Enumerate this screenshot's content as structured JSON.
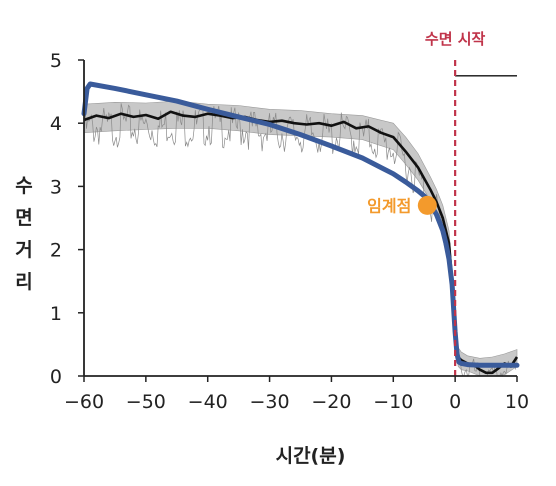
{
  "colors": {
    "model": "#3a5b9b",
    "data": "#111111",
    "band": "#c8c8c8",
    "sleep_onset": "#c0344a",
    "tipping_point": "#f39a2c",
    "axis": "#222222"
  },
  "chart_data": {
    "type": "line",
    "xlabel": "시간(분)",
    "ylabel": "수면거리",
    "ylabel_chars": [
      "수",
      "면",
      "거",
      "리"
    ],
    "xlim": [
      -60,
      10
    ],
    "ylim": [
      0,
      5
    ],
    "xticks": [
      -60,
      -50,
      -40,
      -30,
      -20,
      -10,
      0,
      10
    ],
    "yticks": [
      0,
      1,
      2,
      3,
      4,
      5
    ],
    "xtick_labels": [
      "−60",
      "−50",
      "−40",
      "−30",
      "−20",
      "−10",
      "0",
      "10"
    ],
    "ytick_labels": [
      "0",
      "1",
      "2",
      "3",
      "4",
      "5"
    ],
    "grid": false,
    "sleep_onset": {
      "x": 0,
      "label": "수면 시작",
      "style": "dashed"
    },
    "tipping_point": {
      "x": -4.5,
      "y": 2.7,
      "label": "임계점"
    },
    "series": [
      {
        "kind": "data-mean",
        "x": [
          -60,
          -58,
          -56,
          -54,
          -52,
          -50,
          -48,
          -46,
          -44,
          -42,
          -40,
          -38,
          -36,
          -34,
          -32,
          -30,
          -28,
          -26,
          -24,
          -22,
          -20,
          -18,
          -16,
          -14,
          -12,
          -10,
          -8,
          -6,
          -4,
          -3,
          -2,
          -1,
          -0.5,
          0,
          0.5,
          1,
          2,
          3,
          4,
          5,
          6,
          7,
          8,
          9,
          10
        ],
        "y": [
          4.05,
          4.12,
          4.08,
          4.15,
          4.1,
          4.13,
          4.07,
          4.18,
          4.12,
          4.1,
          4.15,
          4.12,
          4.08,
          4.1,
          4.05,
          4.02,
          4.04,
          4.0,
          3.98,
          4.0,
          3.96,
          4.02,
          3.92,
          3.95,
          3.85,
          3.78,
          3.55,
          3.3,
          2.95,
          2.75,
          2.5,
          2.1,
          1.5,
          0.7,
          0.3,
          0.25,
          0.2,
          0.18,
          0.1,
          0.05,
          0.05,
          0.12,
          0.2,
          0.15,
          0.3
        ]
      },
      {
        "kind": "model-fit",
        "x": [
          -60,
          -59.5,
          -59,
          -55,
          -50,
          -45,
          -40,
          -35,
          -30,
          -25,
          -20,
          -15,
          -10,
          -8,
          -6,
          -5,
          -4,
          -3,
          -2,
          -1.5,
          -1,
          -0.5,
          0,
          0.3,
          0.6,
          1,
          2,
          4,
          6,
          8,
          10
        ],
        "y": [
          4.15,
          4.55,
          4.62,
          4.55,
          4.45,
          4.35,
          4.22,
          4.1,
          3.98,
          3.82,
          3.64,
          3.45,
          3.2,
          3.07,
          2.93,
          2.85,
          2.72,
          2.55,
          2.3,
          2.1,
          1.85,
          1.45,
          0.7,
          0.35,
          0.22,
          0.2,
          0.18,
          0.17,
          0.17,
          0.17,
          0.17
        ]
      },
      {
        "kind": "band",
        "x": [
          -60,
          -55,
          -50,
          -45,
          -40,
          -35,
          -30,
          -25,
          -20,
          -15,
          -10,
          -8,
          -6,
          -4,
          -3,
          -2,
          -1,
          -0.5,
          0,
          0.5,
          1,
          2,
          4,
          6,
          8,
          10
        ],
        "upper": [
          4.3,
          4.33,
          4.32,
          4.35,
          4.3,
          4.28,
          4.22,
          4.2,
          4.15,
          4.12,
          4.0,
          3.78,
          3.52,
          3.15,
          2.95,
          2.7,
          2.3,
          1.7,
          0.9,
          0.45,
          0.38,
          0.32,
          0.28,
          0.3,
          0.35,
          0.42
        ],
        "lower": [
          3.85,
          3.88,
          3.9,
          3.92,
          3.92,
          3.88,
          3.82,
          3.8,
          3.78,
          3.74,
          3.58,
          3.35,
          3.1,
          2.78,
          2.55,
          2.3,
          1.9,
          1.3,
          0.5,
          0.15,
          0.1,
          0.08,
          0.0,
          0.0,
          0.02,
          0.15
        ]
      }
    ],
    "top_line": {
      "x": [
        0,
        10
      ],
      "y": [
        4.75,
        4.75
      ]
    }
  }
}
